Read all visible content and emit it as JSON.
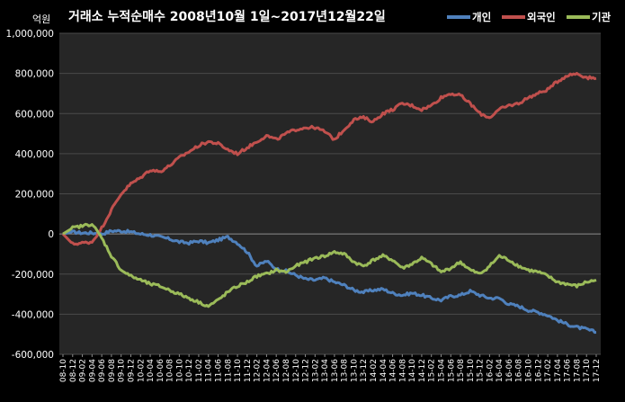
{
  "chart_data": {
    "type": "line",
    "title": "거래소 누적순매수 2008년10월 1일~2017년12월22일",
    "ylabel": "억원",
    "ylim": [
      -600000,
      1000000
    ],
    "yticks": [
      1000000,
      800000,
      600000,
      400000,
      200000,
      0,
      -200000,
      -400000,
      -600000
    ],
    "ytick_labels": [
      "1,000,000",
      "800,000",
      "600,000",
      "400,000",
      "200,000",
      "0",
      "-200,000",
      "-400,000",
      "-600,000"
    ],
    "categories": [
      "08-10",
      "08-12",
      "09-02",
      "09-04",
      "09-06",
      "09-08",
      "09-10",
      "09-12",
      "10-02",
      "10-04",
      "10-06",
      "10-08",
      "10-10",
      "10-12",
      "11-02",
      "11-04",
      "11-06",
      "11-08",
      "11-10",
      "11-12",
      "12-02",
      "12-04",
      "12-06",
      "12-08",
      "12-10",
      "12-12",
      "13-02",
      "13-04",
      "13-06",
      "13-08",
      "13-10",
      "13-12",
      "14-02",
      "14-04",
      "14-06",
      "14-08",
      "14-10",
      "14-12",
      "15-02",
      "15-04",
      "15-06",
      "15-08",
      "15-10",
      "15-12",
      "16-02",
      "16-04",
      "16-06",
      "16-08",
      "16-10",
      "16-12",
      "17-02",
      "17-04",
      "17-06",
      "17-08",
      "17-10",
      "17-12"
    ],
    "grid": true,
    "legend_position": "top-right",
    "series": [
      {
        "name": "개인",
        "color": "#4f81bd",
        "values": [
          0,
          10000,
          5000,
          5000,
          0,
          15000,
          15000,
          10000,
          0,
          -5000,
          -15000,
          -25000,
          -40000,
          -45000,
          -35000,
          -45000,
          -30000,
          -15000,
          -45000,
          -90000,
          -160000,
          -135000,
          -175000,
          -185000,
          -205000,
          -225000,
          -230000,
          -220000,
          -240000,
          -255000,
          -280000,
          -290000,
          -280000,
          -275000,
          -295000,
          -305000,
          -295000,
          -305000,
          -320000,
          -330000,
          -310000,
          -305000,
          -285000,
          -305000,
          -320000,
          -320000,
          -350000,
          -360000,
          -380000,
          -390000,
          -405000,
          -430000,
          -450000,
          -465000,
          -475000,
          -490000
        ]
      },
      {
        "name": "외국인",
        "color": "#c0504d",
        "values": [
          0,
          -50000,
          -45000,
          -40000,
          30000,
          120000,
          200000,
          250000,
          280000,
          320000,
          310000,
          340000,
          380000,
          410000,
          440000,
          460000,
          450000,
          420000,
          400000,
          430000,
          460000,
          490000,
          470000,
          500000,
          520000,
          530000,
          530000,
          510000,
          470000,
          520000,
          570000,
          580000,
          560000,
          600000,
          620000,
          650000,
          640000,
          620000,
          640000,
          680000,
          700000,
          690000,
          650000,
          600000,
          580000,
          620000,
          640000,
          650000,
          680000,
          700000,
          720000,
          760000,
          790000,
          800000,
          780000,
          775000
        ]
      },
      {
        "name": "기관",
        "color": "#9bbb59",
        "values": [
          0,
          30000,
          40000,
          50000,
          -20000,
          -110000,
          -180000,
          -210000,
          -230000,
          -250000,
          -260000,
          -280000,
          -300000,
          -320000,
          -340000,
          -360000,
          -330000,
          -290000,
          -260000,
          -240000,
          -210000,
          -200000,
          -180000,
          -190000,
          -160000,
          -140000,
          -120000,
          -110000,
          -90000,
          -100000,
          -140000,
          -160000,
          -130000,
          -110000,
          -130000,
          -170000,
          -150000,
          -120000,
          -150000,
          -190000,
          -170000,
          -140000,
          -180000,
          -200000,
          -160000,
          -110000,
          -130000,
          -160000,
          -180000,
          -190000,
          -210000,
          -240000,
          -250000,
          -260000,
          -240000,
          -230000
        ]
      }
    ]
  }
}
